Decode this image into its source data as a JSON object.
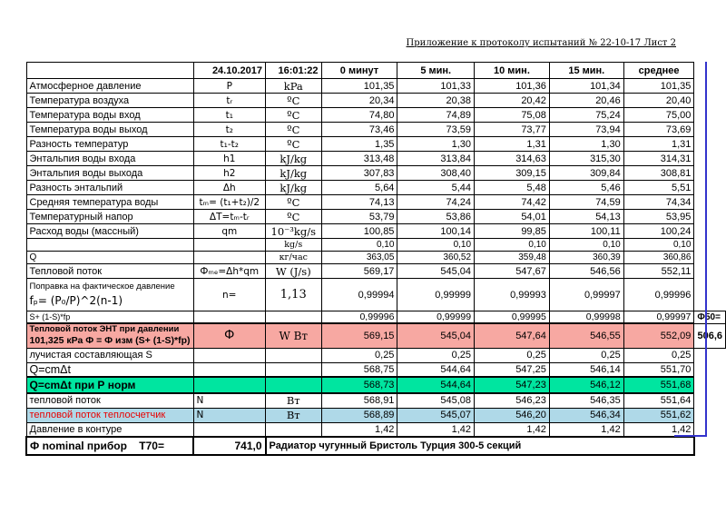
{
  "page": {
    "header_note": "Приложение к протоколу испытаний № 22-10-17 Лист 2"
  },
  "colors": {
    "pink": "#F7A8A2",
    "green": "#00E5A0",
    "blue": "#AFD9E8",
    "red_text": "#E80000",
    "pagebreak_blue": "#3333CC"
  },
  "table": {
    "header": {
      "date": "24.10.2017",
      "time": "16:01:22",
      "cols": [
        "0 минут",
        "5 мин.",
        "10 мин.",
        "15 мин.",
        "среднее"
      ]
    },
    "rows": [
      {
        "cls": "std",
        "label": "Атмосферное давление",
        "sym": "P",
        "unit": "kPa",
        "v": [
          "101,35",
          "101,33",
          "101,36",
          "101,34",
          "101,35"
        ]
      },
      {
        "cls": "std",
        "label": "Температура воздуха",
        "sym": "tᵣ",
        "unit": "ºC",
        "v": [
          "20,34",
          "20,38",
          "20,42",
          "20,46",
          "20,40"
        ]
      },
      {
        "cls": "std",
        "label": "Температура воды вход",
        "sym": "t₁",
        "unit": "ºC",
        "v": [
          "74,80",
          "74,89",
          "75,08",
          "75,24",
          "75,00"
        ]
      },
      {
        "cls": "std",
        "label": "Температура воды выход",
        "sym": "t₂",
        "unit": "ºC",
        "v": [
          "73,46",
          "73,59",
          "73,77",
          "73,94",
          "73,69"
        ]
      },
      {
        "cls": "std",
        "label": "Разность температур",
        "sym": "t₁-t₂",
        "unit": "ºC",
        "v": [
          "1,35",
          "1,30",
          "1,31",
          "1,30",
          "1,31"
        ]
      },
      {
        "cls": "std",
        "label": "Энтальпия воды входа",
        "sym": "h1",
        "unit": "kJ/kg",
        "v": [
          "313,48",
          "313,84",
          "314,63",
          "315,30",
          "314,31"
        ]
      },
      {
        "cls": "std",
        "label": "Энтальпия воды выхода",
        "sym": "h2",
        "unit": "kJ/kg",
        "v": [
          "307,83",
          "308,40",
          "309,15",
          "309,84",
          "308,81"
        ]
      },
      {
        "cls": "std",
        "label": "Разность энтальпий",
        "sym": "Δh",
        "unit": "kJ/kg",
        "v": [
          "5,64",
          "5,44",
          "5,48",
          "5,46",
          "5,51"
        ]
      },
      {
        "cls": "std",
        "label": "Средняя температура воды",
        "sym": "tₘ= (t₁+t₂)/2",
        "unit": "ºC",
        "v": [
          "74,13",
          "74,24",
          "74,42",
          "74,59",
          "74,34"
        ]
      },
      {
        "cls": "std",
        "label": "Температурный напор",
        "sym": "ΔT=tₘ-tᵣ",
        "unit": "ºC",
        "v": [
          "53,79",
          "53,86",
          "54,01",
          "54,13",
          "53,95"
        ]
      },
      {
        "cls": "std",
        "label": "Расход воды (массный)",
        "sym": "qm",
        "unit": "10⁻³kg/s",
        "v": [
          "100,85",
          "100,14",
          "99,85",
          "100,11",
          "100,24"
        ]
      },
      {
        "cls": "sm",
        "label": "",
        "sym": "",
        "unit": "kg/s",
        "v": [
          "0,10",
          "0,10",
          "0,10",
          "0,10",
          "0,10"
        ]
      },
      {
        "cls": "sm",
        "label": "Q",
        "sym": "",
        "unit": "кг/час",
        "v": [
          "363,05",
          "360,52",
          "359,48",
          "360,39",
          "360,86"
        ]
      },
      {
        "cls": "std",
        "label": "Тепловой поток",
        "sym": "Фₘₑ=Δh*qm",
        "unit": "W (J/s)",
        "v": [
          "569,17",
          "545,04",
          "547,67",
          "546,56",
          "552,11"
        ]
      },
      {
        "cls": "tall",
        "label": "Поправка на фактическое давление",
        "label2": "fₚ= (P₀/P)^2(n-1)",
        "sym": "n=",
        "unit": "1,13",
        "v": [
          "0,99994",
          "0,99999",
          "0,99993",
          "0,99997",
          "0,99996"
        ]
      },
      {
        "cls": "xs",
        "label": "S+ (1-S)*fp",
        "sym": "",
        "unit": "",
        "v": [
          "0,99996",
          "0,99999",
          "0,99995",
          "0,99998",
          "0,99997"
        ],
        "extra": "Ф50=",
        "extraCls": "xleft"
      },
      {
        "cls": "pink",
        "label": "Тепловой поток ЭНТ  при давлении",
        "label2": "101,325 кРа Ф  = Ф изм (S+ (1-S)*fp)",
        "sym": "Ф",
        "unit": "W Вт",
        "v": [
          "569,15",
          "545,04",
          "547,64",
          "546,55",
          "552,09"
        ],
        "extra": "506,6",
        "extraCls": "xright"
      },
      {
        "cls": "std",
        "label": "лучистая составляющая S",
        "sym": "",
        "unit": "",
        "v": [
          "0,25",
          "0,25",
          "0,25",
          "0,25",
          "0,25"
        ]
      },
      {
        "cls": "qcm",
        "label": "Q=cmΔt",
        "sym": "",
        "unit": "",
        "v": [
          "568,75",
          "544,64",
          "547,25",
          "546,14",
          "551,70"
        ]
      },
      {
        "cls": "green",
        "label": "Q=cmΔt  при Р норм",
        "sym": "",
        "unit": "",
        "v": [
          "568,73",
          "544,64",
          "547,23",
          "546,12",
          "551,68"
        ]
      },
      {
        "cls": "std",
        "label": "тепловой поток",
        "sym": "N",
        "unit": "Вт",
        "v": [
          "568,91",
          "545,08",
          "546,23",
          "546,35",
          "551,64"
        ],
        "symLeft": true
      },
      {
        "cls": "blue",
        "label": "тепловой поток теплосчетчик",
        "sym": "N",
        "unit": "Вт",
        "v": [
          "568,89",
          "545,07",
          "546,20",
          "546,34",
          "551,62"
        ],
        "symLeft": true
      },
      {
        "cls": "std",
        "label": "Давление в контуре",
        "sym": "",
        "unit": "",
        "v": [
          "1,42",
          "1,42",
          "1,42",
          "1,42",
          "1,42"
        ]
      }
    ],
    "footer": {
      "label": "Ф nominal прибор    T70=",
      "value": "741,0",
      "description": "Радиатор чугунный Бристоль Турция  300-5 секций"
    }
  }
}
